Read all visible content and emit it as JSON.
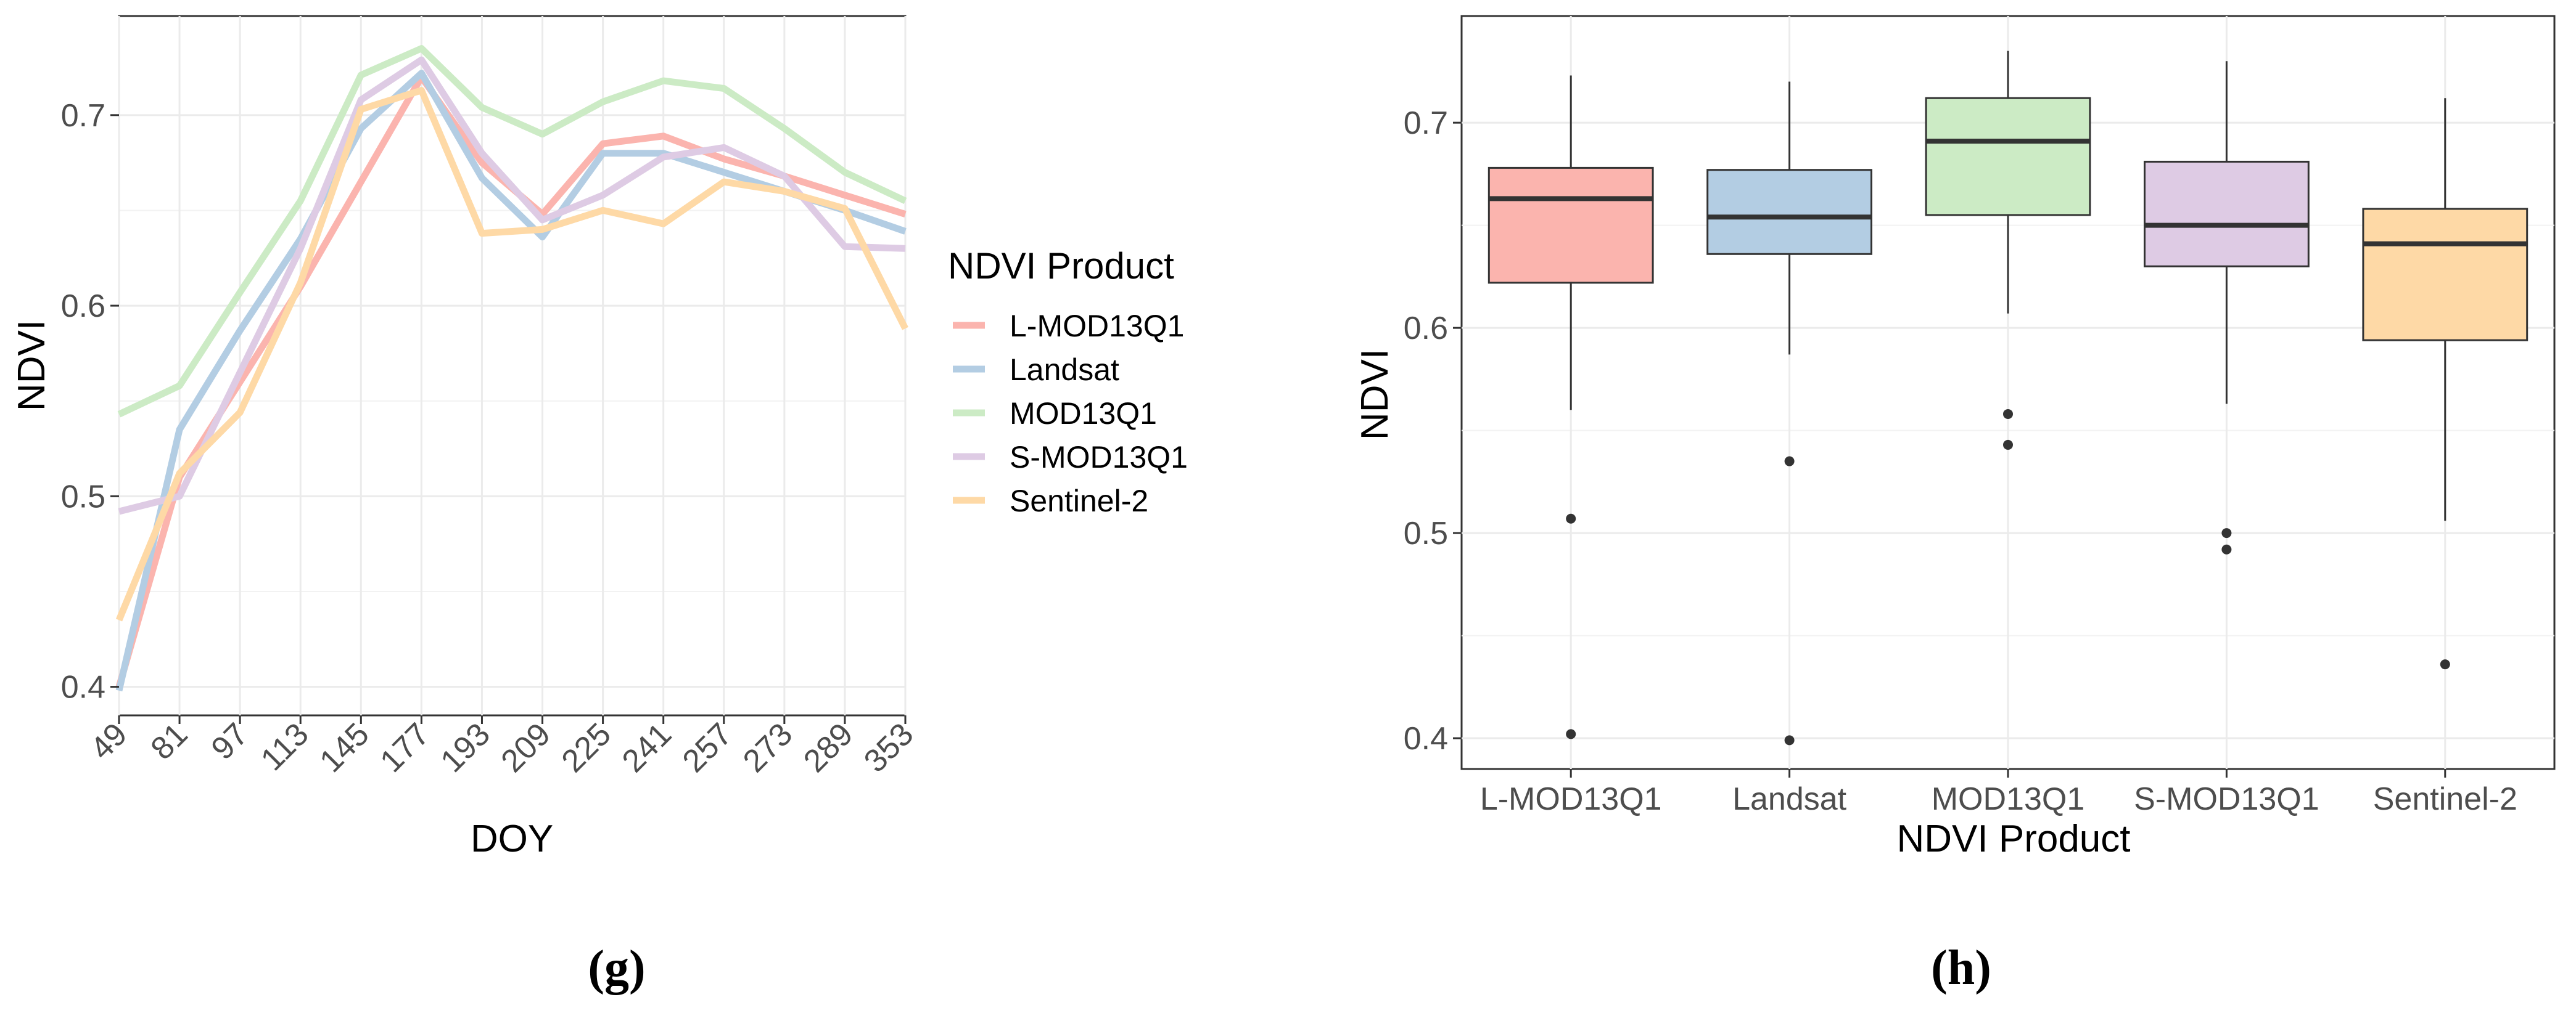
{
  "chart_data": [
    {
      "type": "line",
      "panel_label": "g",
      "xlabel": "DOY",
      "ylabel": "NDVI",
      "x": [
        49,
        81,
        97,
        113,
        145,
        177,
        193,
        209,
        225,
        241,
        257,
        273,
        289,
        353
      ],
      "x_tick_labels": [
        "49",
        "81",
        "97",
        "113",
        "145",
        "177",
        "193",
        "209",
        "225",
        "241",
        "257",
        "273",
        "289",
        "353"
      ],
      "y_ticks": [
        0.4,
        0.5,
        0.6,
        0.7
      ],
      "y_tick_labels": [
        "0.4",
        "0.5",
        "0.6",
        "0.7"
      ],
      "ylim": [
        0.385,
        0.752
      ],
      "grid": true,
      "legend": {
        "title": "NDVI Product",
        "placement": "right"
      },
      "series": [
        {
          "name": "L-MOD13Q1",
          "color": "#FBB4AE",
          "values": [
            0.4,
            0.51,
            0.56,
            0.61,
            0.665,
            0.72,
            0.675,
            0.648,
            0.685,
            0.689,
            0.677,
            0.668,
            0.658,
            0.648
          ]
        },
        {
          "name": "Landsat",
          "color": "#B3CDE3",
          "values": [
            0.398,
            0.535,
            0.587,
            0.635,
            0.693,
            0.722,
            0.667,
            0.636,
            0.68,
            0.68,
            0.67,
            0.66,
            0.65,
            0.639
          ]
        },
        {
          "name": "MOD13Q1",
          "color": "#CCEBC5",
          "values": [
            0.543,
            0.558,
            0.607,
            0.655,
            0.721,
            0.735,
            0.704,
            0.69,
            0.707,
            0.718,
            0.714,
            0.693,
            0.67,
            0.655
          ]
        },
        {
          "name": "S-MOD13Q1",
          "color": "#DECBE4",
          "values": [
            0.492,
            0.5,
            0.565,
            0.63,
            0.708,
            0.729,
            0.68,
            0.645,
            0.658,
            0.678,
            0.683,
            0.668,
            0.631,
            0.63
          ]
        },
        {
          "name": "Sentinel-2",
          "color": "#FED9A6",
          "values": [
            0.435,
            0.512,
            0.544,
            0.612,
            0.703,
            0.713,
            0.638,
            0.64,
            0.65,
            0.643,
            0.665,
            0.66,
            0.651,
            0.588
          ]
        }
      ]
    },
    {
      "type": "box",
      "panel_label": "h",
      "xlabel": "NDVI Product",
      "ylabel": "NDVI",
      "categories": [
        "L-MOD13Q1",
        "Landsat",
        "MOD13Q1",
        "S-MOD13Q1",
        "Sentinel-2"
      ],
      "y_ticks": [
        0.4,
        0.5,
        0.6,
        0.7
      ],
      "y_tick_labels": [
        "0.4",
        "0.5",
        "0.6",
        "0.7"
      ],
      "ylim": [
        0.385,
        0.752
      ],
      "grid": true,
      "boxes": [
        {
          "name": "L-MOD13Q1",
          "color": "#FBB4AE",
          "whisker_low": 0.56,
          "q1": 0.622,
          "median": 0.663,
          "q3": 0.678,
          "whisker_high": 0.723,
          "outliers": [
            0.507,
            0.402
          ]
        },
        {
          "name": "Landsat",
          "color": "#B3CDE3",
          "whisker_low": 0.587,
          "q1": 0.636,
          "median": 0.654,
          "q3": 0.677,
          "whisker_high": 0.72,
          "outliers": [
            0.535,
            0.399
          ]
        },
        {
          "name": "MOD13Q1",
          "color": "#CCEBC5",
          "whisker_low": 0.607,
          "q1": 0.655,
          "median": 0.691,
          "q3": 0.712,
          "whisker_high": 0.735,
          "outliers": [
            0.558,
            0.543
          ]
        },
        {
          "name": "S-MOD13Q1",
          "color": "#DECBE4",
          "whisker_low": 0.563,
          "q1": 0.63,
          "median": 0.65,
          "q3": 0.681,
          "whisker_high": 0.73,
          "outliers": [
            0.5,
            0.492
          ]
        },
        {
          "name": "Sentinel-2",
          "color": "#FED9A6",
          "whisker_low": 0.506,
          "q1": 0.594,
          "median": 0.641,
          "q3": 0.658,
          "whisker_high": 0.712,
          "outliers": [
            0.436
          ]
        }
      ]
    }
  ]
}
